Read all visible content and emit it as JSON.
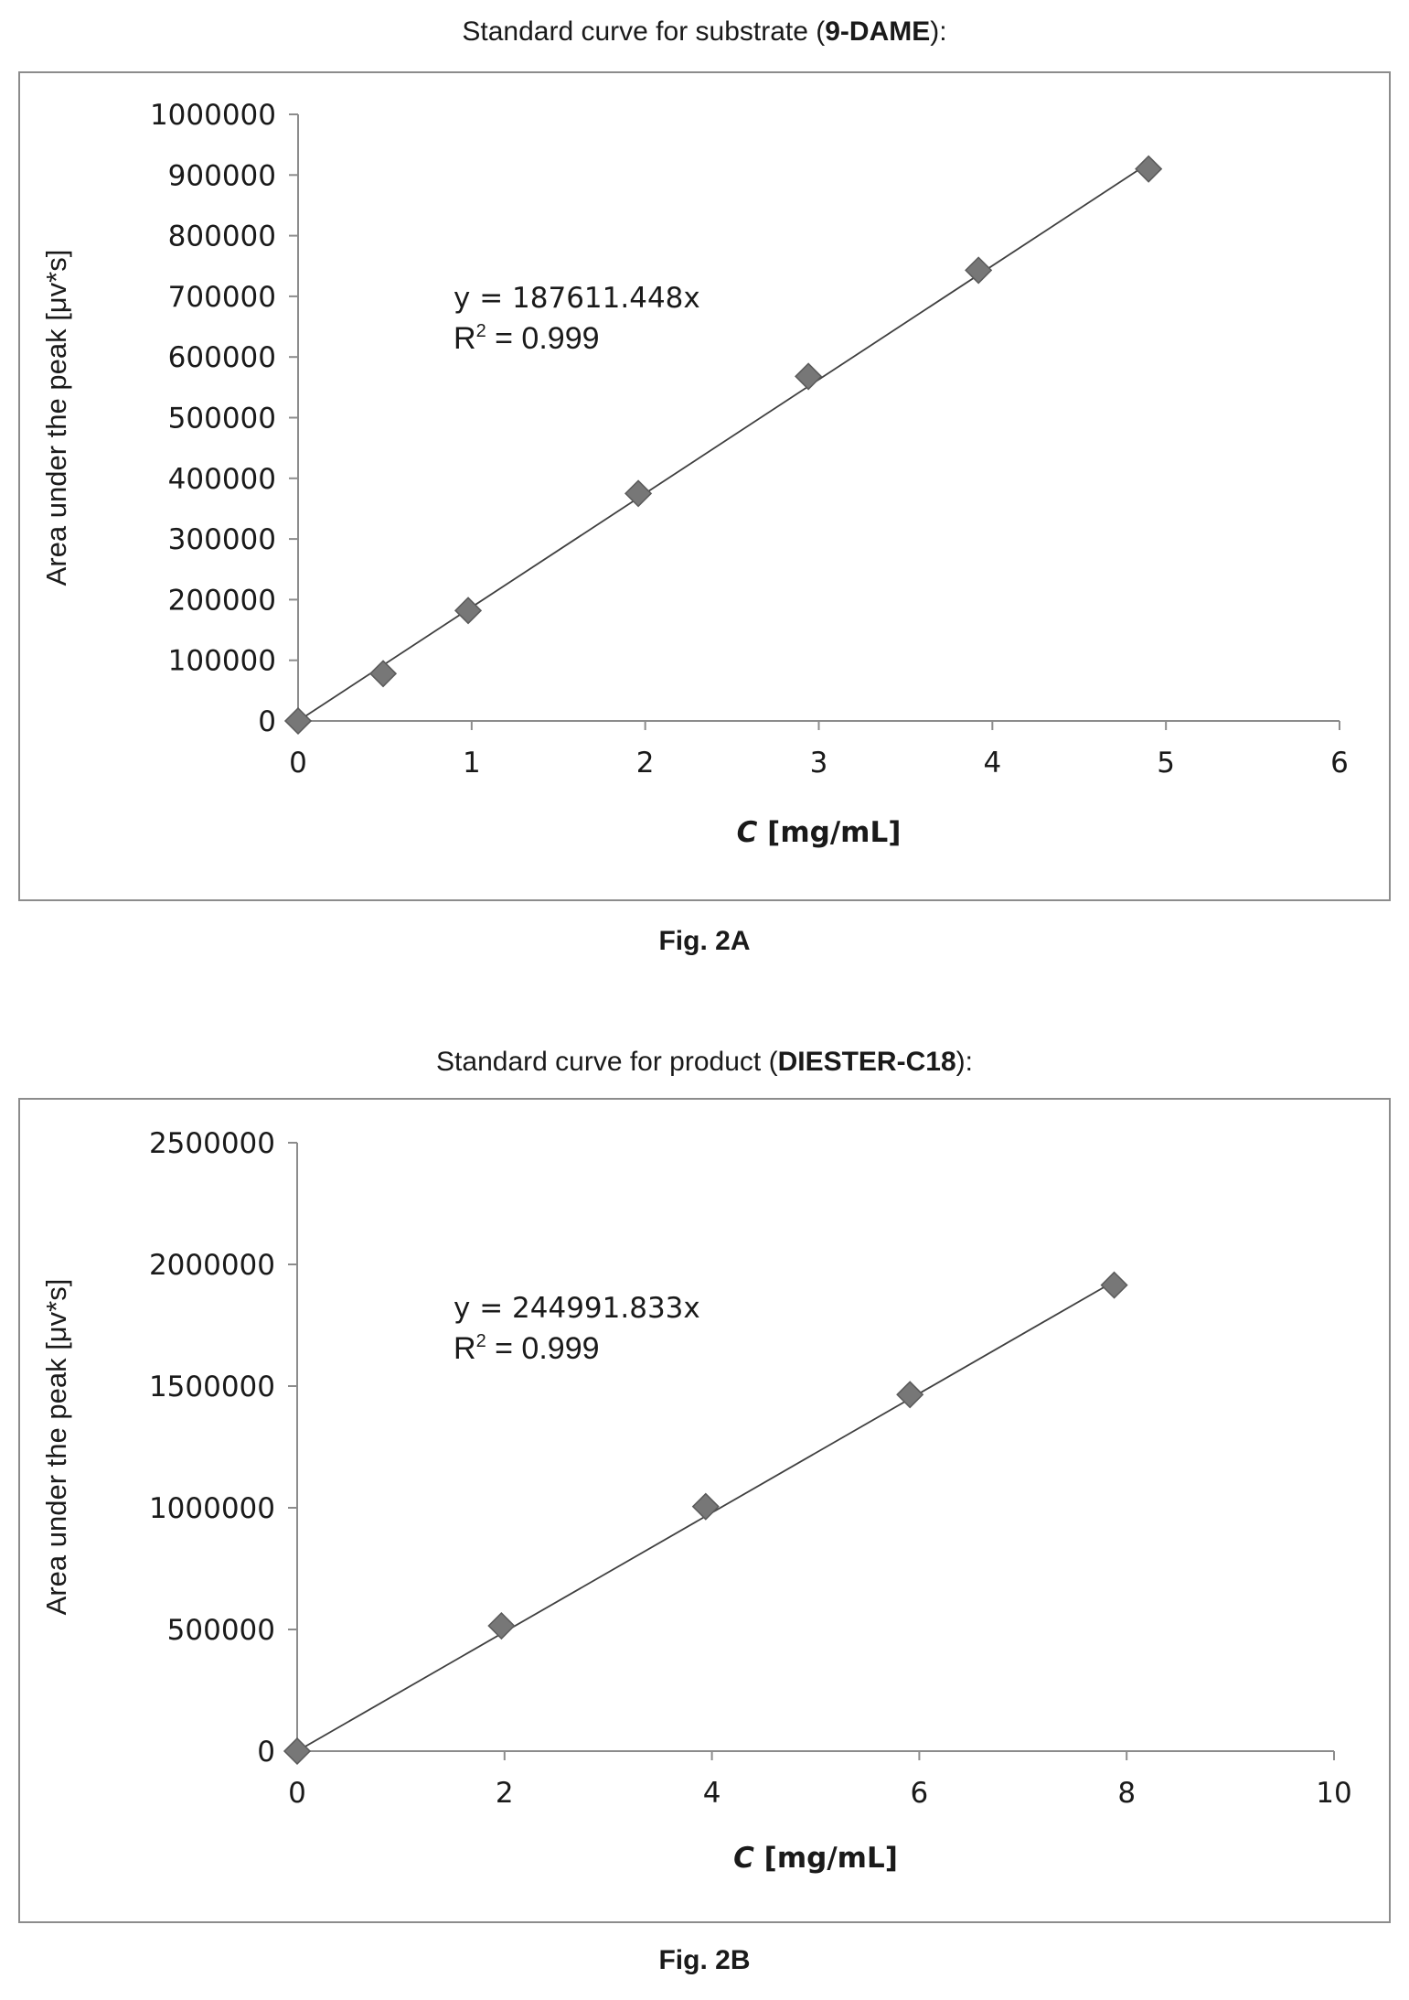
{
  "chart_data": [
    {
      "type": "scatter",
      "title_plain": "Standard curve for substrate (",
      "title_bold": "9-DAME",
      "title_end": "):",
      "xlabel_italic": "C",
      "xlabel_rest": " [mg/mL]",
      "ylabel": "Area under the peak [μv*s]",
      "xlim": [
        0,
        6
      ],
      "ylim": [
        0,
        1000000
      ],
      "xticks": [
        "0",
        "1",
        "2",
        "3",
        "4",
        "5",
        "6"
      ],
      "yticks": [
        "0",
        "100000",
        "200000",
        "300000",
        "400000",
        "500000",
        "600000",
        "700000",
        "800000",
        "900000",
        "1000000"
      ],
      "x": [
        0,
        0.49,
        0.98,
        1.96,
        2.94,
        3.92,
        4.9
      ],
      "y": [
        0,
        78000,
        182000,
        375000,
        568000,
        743000,
        910000
      ],
      "trendline_slope": 187611.448,
      "equation": "y = 187611.448x",
      "r2_prefix": "R",
      "r2_sup": "2",
      "r2_value": " = 0.999",
      "figure_label": "Fig. 2A",
      "marker_color": "#777777",
      "line_color": "#404040",
      "grid": false
    },
    {
      "type": "scatter",
      "title_plain": "Standard curve for product (",
      "title_bold": "DIESTER-C18",
      "title_end": "):",
      "xlabel_italic": "C",
      "xlabel_rest": " [mg/mL]",
      "ylabel": "Area under the peak [μv*s]",
      "xlim": [
        0,
        10
      ],
      "ylim": [
        0,
        2500000
      ],
      "xticks": [
        "0",
        "2",
        "4",
        "6",
        "8",
        "10"
      ],
      "yticks": [
        "0",
        "500000",
        "1000000",
        "1500000",
        "2000000",
        "2500000"
      ],
      "x": [
        0,
        1.97,
        3.94,
        5.91,
        7.88
      ],
      "y": [
        0,
        515000,
        1005000,
        1465000,
        1915000
      ],
      "trendline_slope": 244991.833,
      "equation": "y = 244991.833x",
      "r2_prefix": "R",
      "r2_sup": "2",
      "r2_value": " = 0.999",
      "figure_label": "Fig. 2B",
      "marker_color": "#777777",
      "line_color": "#404040",
      "grid": false
    }
  ]
}
